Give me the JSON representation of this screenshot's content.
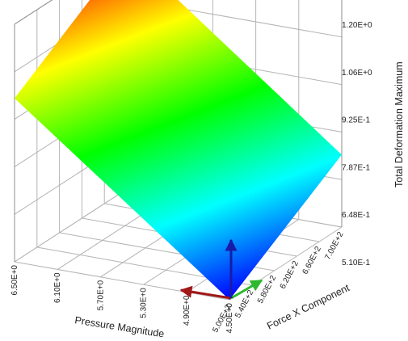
{
  "chart_data": {
    "type": "surface",
    "title": "",
    "xlabel": "Pressure Magnitude",
    "ylabel": "Force X Component",
    "zlabel": "Total Deformation Maximum",
    "x_ticks": [
      "4.50E+0",
      "4.90E+0",
      "5.30E+0",
      "5.70E+0",
      "6.10E+0",
      "6.50E+0"
    ],
    "y_ticks": [
      "5.00E+2",
      "5.40E+2",
      "5.80E+2",
      "6.20E+2",
      "6.60E+2",
      "7.00E+2"
    ],
    "z_ticks": [
      "5.10E-1",
      "6.48E-1",
      "7.87E-1",
      "9.25E-1",
      "1.06E+0",
      "1.20E+0"
    ],
    "xlim": [
      4.5,
      6.5
    ],
    "ylim": [
      500,
      700
    ],
    "zlim": [
      0.51,
      1.2
    ],
    "grid": true,
    "colormap": [
      "#0000ff",
      "#00ffff",
      "#00ff00",
      "#ffff00",
      "#ff0000"
    ],
    "surface": [
      {
        "x": 4.5,
        "y": 500,
        "z": 0.51
      },
      {
        "x": 4.5,
        "y": 700,
        "z": 0.72
      },
      {
        "x": 6.5,
        "y": 500,
        "z": 0.985
      },
      {
        "x": 6.5,
        "y": 700,
        "z": 1.2
      }
    ],
    "axis_arrow_colors": {
      "x": "#a01818",
      "y": "#2db82d",
      "z": "#1a1aa8"
    }
  }
}
